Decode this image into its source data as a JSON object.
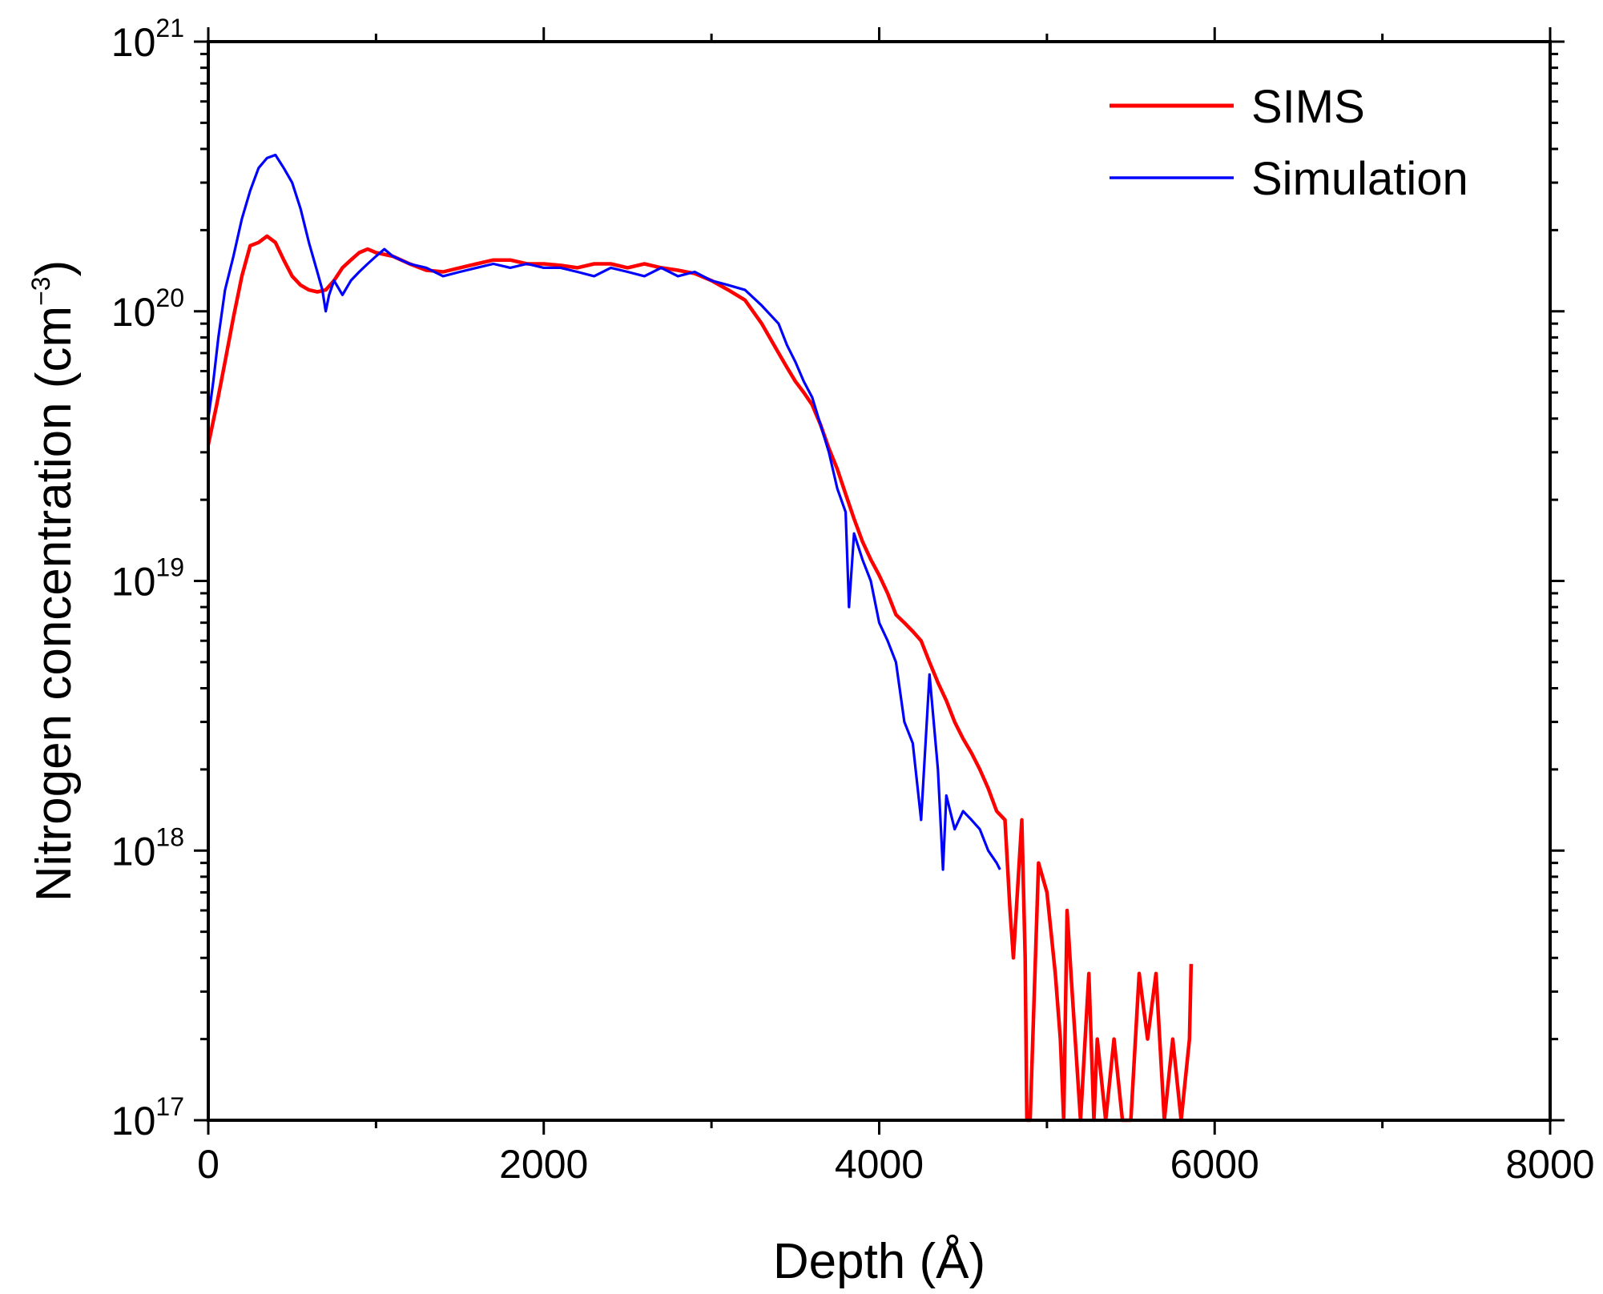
{
  "chart_data": {
    "type": "line",
    "title": "",
    "xlabel": "Depth (Å)",
    "ylabel": "Nitrogen concentration (cm",
    "ylabel_exponent": "−3",
    "ylabel_close": ")",
    "xlim": [
      0,
      8000
    ],
    "ylim": [
      1e+17,
      1e+21
    ],
    "yscale": "log",
    "grid": false,
    "legend_position": "top-right",
    "x_ticks": [
      {
        "value": 0,
        "label": "0"
      },
      {
        "value": 2000,
        "label": "2000"
      },
      {
        "value": 4000,
        "label": "4000"
      },
      {
        "value": 6000,
        "label": "6000"
      },
      {
        "value": 8000,
        "label": "8000"
      }
    ],
    "y_ticks": [
      {
        "value": 1e+17,
        "base": "10",
        "exp": "17"
      },
      {
        "value": 1e+18,
        "base": "10",
        "exp": "18"
      },
      {
        "value": 1e+19,
        "base": "10",
        "exp": "19"
      },
      {
        "value": 1e+20,
        "base": "10",
        "exp": "20"
      },
      {
        "value": 1e+21,
        "base": "10",
        "exp": "21"
      }
    ],
    "series": [
      {
        "name": "SIMS",
        "color": "#ff0000",
        "x": [
          0,
          50,
          100,
          150,
          200,
          250,
          300,
          350,
          400,
          450,
          500,
          550,
          600,
          650,
          700,
          750,
          800,
          850,
          900,
          950,
          1000,
          1100,
          1200,
          1300,
          1400,
          1500,
          1600,
          1700,
          1800,
          1900,
          2000,
          2100,
          2200,
          2300,
          2400,
          2500,
          2600,
          2700,
          2800,
          2900,
          3000,
          3100,
          3200,
          3300,
          3400,
          3450,
          3500,
          3550,
          3600,
          3650,
          3700,
          3750,
          3800,
          3850,
          3900,
          3950,
          4000,
          4050,
          4100,
          4150,
          4200,
          4250,
          4300,
          4350,
          4400,
          4450,
          4500,
          4550,
          4600,
          4650,
          4700,
          4750,
          4780,
          4800,
          4850,
          4870,
          4880,
          4900,
          4950,
          5000,
          5050,
          5080,
          5100,
          5120,
          5150,
          5200,
          5250,
          5280,
          5300,
          5350,
          5400,
          5450,
          5500,
          5550,
          5600,
          5650,
          5700,
          5750,
          5800,
          5850,
          5860
        ],
        "y": [
          3.2e+19,
          4.5e+19,
          6.5e+19,
          9.5e+19,
          1.35e+20,
          1.75e+20,
          1.8e+20,
          1.9e+20,
          1.8e+20,
          1.55e+20,
          1.35e+20,
          1.25e+20,
          1.2e+20,
          1.18e+20,
          1.2e+20,
          1.3e+20,
          1.45e+20,
          1.55e+20,
          1.65e+20,
          1.7e+20,
          1.65e+20,
          1.6e+20,
          1.5e+20,
          1.42e+20,
          1.4e+20,
          1.45e+20,
          1.5e+20,
          1.55e+20,
          1.55e+20,
          1.5e+20,
          1.5e+20,
          1.48e+20,
          1.45e+20,
          1.5e+20,
          1.5e+20,
          1.45e+20,
          1.5e+20,
          1.45e+20,
          1.42e+20,
          1.38e+20,
          1.3e+20,
          1.2e+20,
          1.1e+20,
          9e+19,
          7e+19,
          6.2e+19,
          5.5e+19,
          5e+19,
          4.5e+19,
          3.8e+19,
          3.1e+19,
          2.6e+19,
          2.1e+19,
          1.7e+19,
          1.4e+19,
          1.2e+19,
          1.05e+19,
          9e+18,
          7.5e+18,
          7e+18,
          6.5e+18,
          6e+18,
          5e+18,
          4.2e+18,
          3.6e+18,
          3e+18,
          2.6e+18,
          2.3e+18,
          2e+18,
          1.7e+18,
          1.4e+18,
          1.3e+18,
          6e+17,
          4e+17,
          1.3e+18,
          4e+17,
          1e+17,
          1e+17,
          9e+17,
          7e+17,
          3.5e+17,
          2e+17,
          1e+17,
          6e+17,
          3e+17,
          1e+17,
          3.5e+17,
          1e+17,
          2e+17,
          1e+17,
          2e+17,
          1e+17,
          1e+17,
          3.5e+17,
          2e+17,
          3.5e+17,
          1e+17,
          2e+17,
          1e+17,
          2e+17,
          3.8e+17
        ]
      },
      {
        "name": "Simulation",
        "color": "#0000ff",
        "x": [
          0,
          30,
          60,
          100,
          150,
          200,
          250,
          300,
          350,
          400,
          450,
          500,
          550,
          600,
          650,
          680,
          700,
          720,
          750,
          800,
          850,
          900,
          950,
          1000,
          1050,
          1100,
          1200,
          1300,
          1400,
          1500,
          1600,
          1700,
          1800,
          1900,
          2000,
          2100,
          2200,
          2300,
          2400,
          2500,
          2600,
          2700,
          2800,
          2900,
          3000,
          3100,
          3200,
          3300,
          3400,
          3450,
          3500,
          3550,
          3600,
          3650,
          3700,
          3750,
          3800,
          3820,
          3850,
          3900,
          3950,
          4000,
          4050,
          4100,
          4150,
          4200,
          4250,
          4300,
          4350,
          4380,
          4400,
          4450,
          4500,
          4550,
          4600,
          4650,
          4700,
          4720
        ],
        "y": [
          4e+19,
          5.5e+19,
          8e+19,
          1.2e+20,
          1.6e+20,
          2.2e+20,
          2.8e+20,
          3.4e+20,
          3.7e+20,
          3.8e+20,
          3.4e+20,
          3e+20,
          2.4e+20,
          1.8e+20,
          1.4e+20,
          1.2e+20,
          1e+20,
          1.15e+20,
          1.3e+20,
          1.15e+20,
          1.3e+20,
          1.4e+20,
          1.5e+20,
          1.6e+20,
          1.7e+20,
          1.6e+20,
          1.5e+20,
          1.45e+20,
          1.35e+20,
          1.4e+20,
          1.45e+20,
          1.5e+20,
          1.45e+20,
          1.5e+20,
          1.45e+20,
          1.45e+20,
          1.4e+20,
          1.35e+20,
          1.45e+20,
          1.4e+20,
          1.35e+20,
          1.45e+20,
          1.35e+20,
          1.4e+20,
          1.3e+20,
          1.25e+20,
          1.2e+20,
          1.05e+20,
          9e+19,
          7.5e+19,
          6.5e+19,
          5.5e+19,
          4.8e+19,
          3.8e+19,
          3e+19,
          2.2e+19,
          1.8e+19,
          8e+18,
          1.5e+19,
          1.2e+19,
          1e+19,
          7e+18,
          6e+18,
          5e+18,
          3e+18,
          2.5e+18,
          1.3e+18,
          4.5e+18,
          2e+18,
          8.5e+17,
          1.6e+18,
          1.2e+18,
          1.4e+18,
          1.3e+18,
          1.2e+18,
          1e+18,
          9e+17,
          8.5e+17
        ]
      }
    ]
  }
}
